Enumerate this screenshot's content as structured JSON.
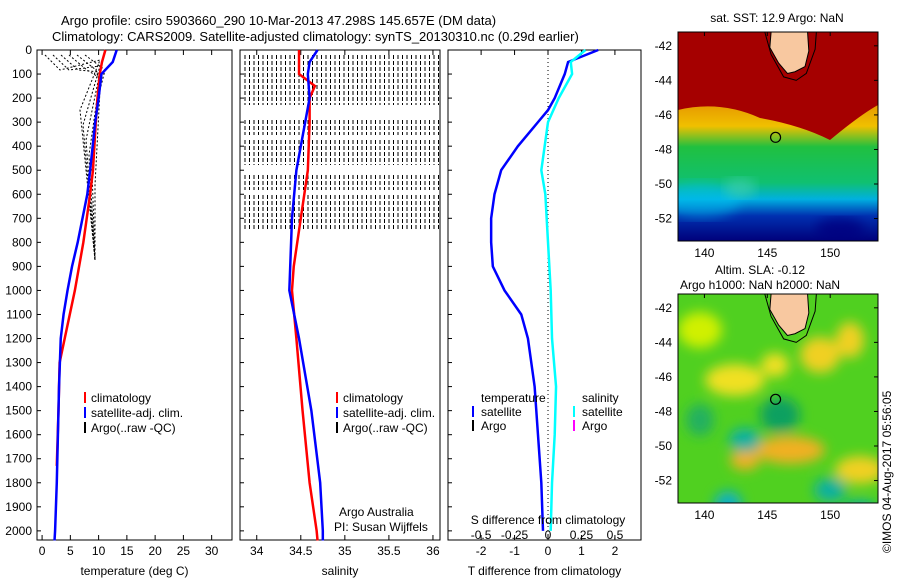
{
  "header": {
    "line1": "Argo profile: csiro 5903660_290 10-Mar-2013 47.298S 145.657E (DM data)",
    "line2": "Climatology: CARS2009. Satellite-adjusted climatology: synTS_20130310.nc (0.29d earlier)"
  },
  "credit": "©IMOS 04-Aug-2017 05:56:05",
  "colors": {
    "clim": "#ff0000",
    "sat": "#0000ff",
    "argo": "#000000",
    "sal_sat": "#00ffff",
    "sal_argo": "#ff00ff"
  },
  "chart_data": [
    {
      "type": "line",
      "name": "temperature",
      "xlabel": "temperature (deg C)",
      "ylabel": "",
      "xlim": [
        -0.9,
        33.6
      ],
      "ylim": [
        0,
        2038
      ],
      "xticks": [
        0,
        5,
        10,
        15,
        20,
        25,
        30
      ],
      "yticks": [
        0,
        100,
        200,
        300,
        400,
        500,
        600,
        700,
        800,
        900,
        1000,
        1100,
        1200,
        1300,
        1400,
        1500,
        1600,
        1700,
        1800,
        1900,
        2000
      ],
      "legend": [
        "climatology",
        "satellite-adj. clim.",
        "Argo(..raw -QC)"
      ],
      "series": [
        {
          "name": "climatology",
          "color": "#ff0000",
          "depth": [
            0,
            50,
            100,
            200,
            300,
            500,
            600,
            800,
            1000,
            1200,
            1300,
            1500,
            1730
          ],
          "values": [
            11.2,
            10.6,
            10.2,
            9.8,
            9.5,
            9.0,
            8.5,
            7.3,
            5.8,
            4.0,
            3.1,
            2.9,
            2.6
          ]
        },
        {
          "name": "satellite-adj. clim.",
          "color": "#0000ff",
          "depth": [
            0,
            50,
            100,
            200,
            300,
            500,
            600,
            800,
            900,
            1000,
            1100,
            1200,
            1400,
            1600,
            1800,
            2000,
            2040
          ],
          "values": [
            13.2,
            12.5,
            10.5,
            10.0,
            9.4,
            8.5,
            8.0,
            6.3,
            5.3,
            4.5,
            3.8,
            3.3,
            3.0,
            2.8,
            2.6,
            2.3,
            2.2
          ]
        }
      ]
    },
    {
      "type": "line",
      "name": "salinity",
      "xlabel": "salinity",
      "xlim": [
        33.81,
        36.08
      ],
      "ylim": [
        0,
        2038
      ],
      "xticks": [
        34,
        34.5,
        35,
        35.5,
        36
      ],
      "legend": [
        "climatology",
        "satellite-adj. clim.",
        "Argo(..raw -QC)"
      ],
      "annotation": [
        "Argo Australia",
        "PI: Susan Wijffels"
      ],
      "series": [
        {
          "name": "climatology",
          "color": "#ff0000",
          "depth": [
            0,
            100,
            150,
            200,
            300,
            500,
            700,
            900,
            1000,
            1200,
            1500,
            1800,
            2000,
            2040
          ],
          "values": [
            34.48,
            34.48,
            34.66,
            34.6,
            34.6,
            34.58,
            34.5,
            34.42,
            34.4,
            34.45,
            34.52,
            34.6,
            34.68,
            34.69
          ]
        },
        {
          "name": "satellite-adj. clim.",
          "color": "#0000ff",
          "depth": [
            0,
            50,
            100,
            200,
            300,
            500,
            700,
            900,
            1000,
            1200,
            1500,
            1800,
            2000,
            2040
          ],
          "values": [
            34.69,
            34.6,
            34.58,
            34.6,
            34.55,
            34.45,
            34.4,
            34.38,
            34.37,
            34.48,
            34.62,
            34.72,
            34.75,
            34.75
          ]
        }
      ]
    },
    {
      "type": "line",
      "name": "difference",
      "xlabel": "T difference from climatology",
      "x2label": "S difference from climatology",
      "xlim": [
        -2.99,
        2.78
      ],
      "ylim": [
        0,
        2038
      ],
      "xticks": [
        -2,
        -1,
        0,
        1,
        2
      ],
      "x2ticks": [
        "-0.5",
        "-0.25",
        "0",
        "0.25",
        "0.5"
      ],
      "legend_t": {
        "title": "temperature",
        "items": [
          "satellite",
          "Argo"
        ]
      },
      "legend_s": {
        "title": "salinity",
        "items": [
          "satellite",
          "Argo"
        ]
      },
      "series": [
        {
          "name": "T satellite",
          "color": "#0000ff",
          "depth": [
            0,
            50,
            100,
            200,
            250,
            300,
            400,
            500,
            600,
            700,
            800,
            900,
            1000,
            1100,
            1200,
            1400,
            1600,
            1800,
            2000
          ],
          "values": [
            1.5,
            0.6,
            0.5,
            0.2,
            0,
            -0.3,
            -0.9,
            -1.4,
            -1.6,
            -1.7,
            -1.7,
            -1.65,
            -1.3,
            -0.8,
            -0.6,
            -0.4,
            -0.3,
            -0.2,
            -0.15
          ]
        },
        {
          "name": "S satellite",
          "color": "#00ffff",
          "depth": [
            0,
            50,
            100,
            200,
            300,
            500,
            600,
            800,
            1000,
            1200,
            1400,
            1600,
            1800,
            2000
          ],
          "values": [
            0.28,
            0.17,
            0.18,
            0.08,
            0,
            -0.05,
            -0.02,
            0,
            0.02,
            0.03,
            0.06,
            0.05,
            0.03,
            0.02
          ]
        }
      ]
    },
    {
      "type": "heatmap",
      "name": "sst-map",
      "title": "sat. SST: 12.9 Argo: NaN",
      "xlim": [
        137.9,
        153.8
      ],
      "ylim": [
        -53.3,
        -41.2
      ],
      "xticks": [
        140,
        145,
        150
      ],
      "yticks": [
        -42,
        -44,
        -46,
        -48,
        -50,
        -52
      ],
      "marker": {
        "lon": 145.657,
        "lat": -47.298
      }
    },
    {
      "type": "heatmap",
      "name": "sla-map",
      "title": "Altim. SLA: -0.12",
      "subtitle": "Argo h1000: NaN h2000: NaN",
      "xlim": [
        137.9,
        153.8
      ],
      "ylim": [
        -53.3,
        -41.2
      ],
      "xticks": [
        140,
        145,
        150
      ],
      "yticks": [
        -42,
        -44,
        -46,
        -48,
        -50,
        -52
      ],
      "marker": {
        "lon": 145.657,
        "lat": -47.298
      }
    }
  ]
}
